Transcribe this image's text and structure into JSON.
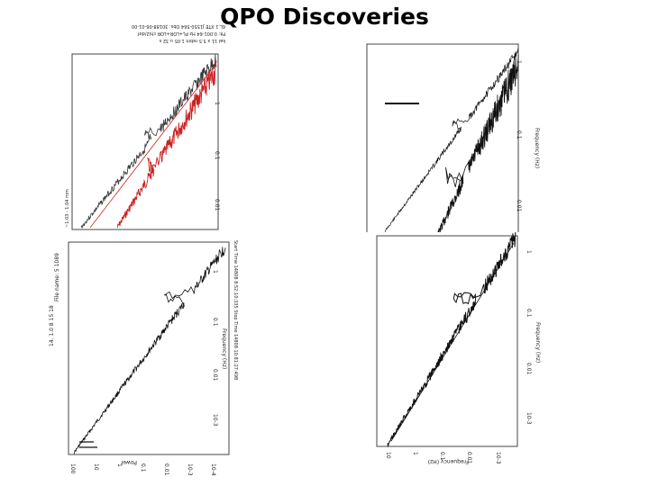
{
  "title": "QPO Discoveries",
  "panels": [
    {
      "name": "plot-top-left",
      "trace_colors": [
        "#333333",
        "#cc2222"
      ],
      "text": {
        "header_1": "6L.1  XTE J1550-564  Obs: 30188-06-01-00",
        "header_2": "Fit: 0.001-64 Hz  PL+LOR+LOR  chi2/dof",
        "header_3": "kal 11 x 5.5  rebin 1.05  u 32 s",
        "side_label": "~1.03 - 1.04 mm",
        "x_ticks": [
          "0.01",
          "0.1",
          "1"
        ]
      }
    },
    {
      "name": "plot-top-right",
      "trace_colors": [
        "#111111"
      ],
      "text": {
        "x_label": "Frequency (Hz)",
        "x_ticks": [
          "0.01",
          "0.1",
          "1"
        ]
      }
    },
    {
      "name": "plot-bottom-left",
      "trace_colors": [
        "#111111"
      ],
      "text": {
        "top_line": "14. 1.0 8 15 18",
        "file_name": "File name: 5 1089",
        "times": "Start Time 14808  8:52:10:335    Stop Time 14808 10:81:27:498",
        "x_label": "Frequency (Hz)",
        "y_label": "Power",
        "x_ticks": [
          "10-3",
          "0.01",
          "0.1",
          "1"
        ],
        "y_ticks": [
          "100",
          "10",
          "1",
          "0.1",
          "0.01",
          "10-3",
          "10-4"
        ]
      }
    },
    {
      "name": "plot-bottom-right",
      "trace_colors": [
        "#111111"
      ],
      "text": {
        "x_label": "Frequency (Hz)",
        "y_label": "Frequency (Hz)",
        "x_ticks": [
          "10-3",
          "0.01",
          "0.1",
          "1"
        ],
        "y_ticks": [
          "10",
          "1",
          "0.1",
          "0.01",
          "10-3"
        ]
      }
    }
  ]
}
